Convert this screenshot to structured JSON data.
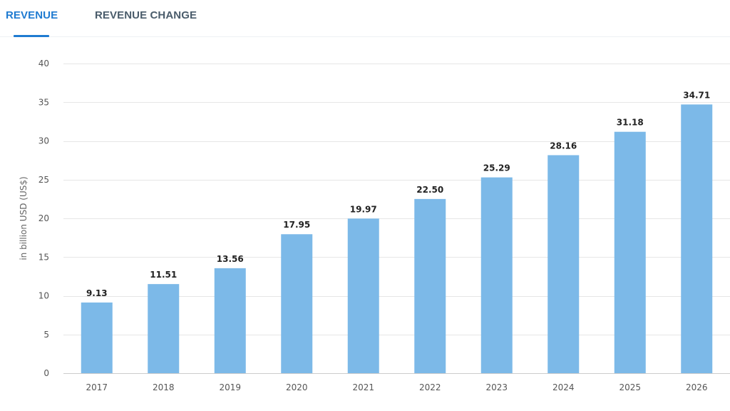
{
  "tabs": {
    "revenue_label": "REVENUE",
    "revenue_change_label": "REVENUE CHANGE",
    "active": "REVENUE"
  },
  "colors": {
    "active_tab": "#1f7bd1",
    "inactive_tab": "#4a5c6b",
    "bar": "#7cb9e8",
    "grid": "#e6e6e6"
  },
  "chart_data": {
    "type": "bar",
    "title": "",
    "xlabel": "",
    "ylabel": "in billion USD (US$)",
    "categories": [
      "2017",
      "2018",
      "2019",
      "2020",
      "2021",
      "2022",
      "2023",
      "2024",
      "2025",
      "2026"
    ],
    "values": [
      9.13,
      11.51,
      13.56,
      17.95,
      19.97,
      22.5,
      25.29,
      28.16,
      31.18,
      34.71
    ],
    "value_labels": [
      "9.13",
      "11.51",
      "13.56",
      "17.95",
      "19.97",
      "22.50",
      "25.29",
      "28.16",
      "31.18",
      "34.71"
    ],
    "ylim": [
      0,
      40
    ],
    "yticks": [
      0,
      5,
      10,
      15,
      20,
      25,
      30,
      35,
      40
    ],
    "grid": true,
    "legend": "none"
  }
}
